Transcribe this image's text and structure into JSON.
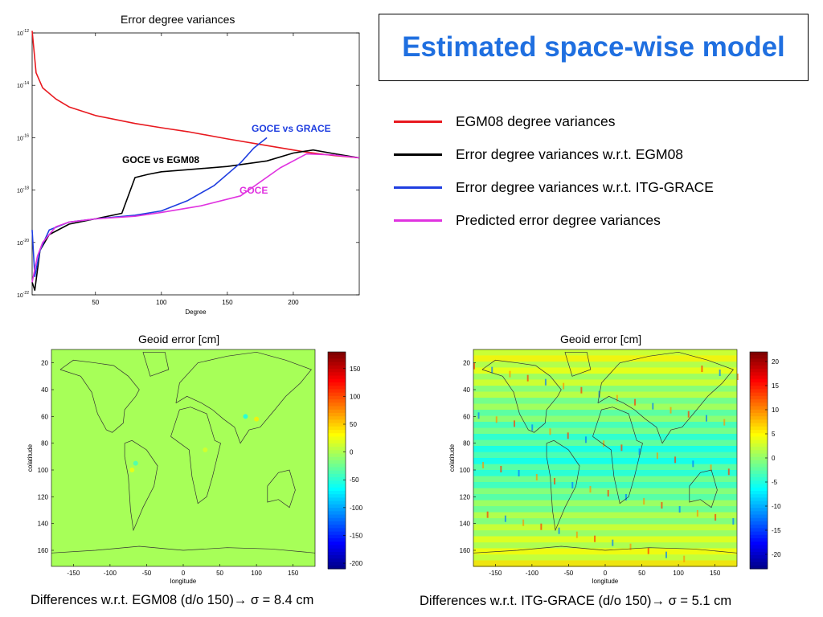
{
  "title": "Estimated space-wise model",
  "legend": [
    {
      "label": "EGM08 degree variances",
      "color": "#e8191f"
    },
    {
      "label": "Error degree variances w.r.t. EGM08",
      "color": "#000000"
    },
    {
      "label": "Error degree variances w.r.t. ITG-GRACE",
      "color": "#1f3ee0"
    },
    {
      "label": "Predicted error degree variances",
      "color": "#e033e0"
    }
  ],
  "chart_data": [
    {
      "type": "line",
      "title": "Error degree variances",
      "xlabel": "Degree",
      "ylabel": "",
      "xlim": [
        2,
        250
      ],
      "ylim": [
        1e-22,
        1e-12
      ],
      "log_y": true,
      "x_ticks": [
        50,
        100,
        150,
        200
      ],
      "y_ticks": [
        "10^-12",
        "10^-14",
        "10^-16",
        "10^-18",
        "10^-20",
        "10^-22"
      ],
      "annotations": [
        "GOCE vs GRACE",
        "GOCE vs EGM08",
        "GOCE"
      ],
      "series": [
        {
          "name": "EGM08 degree variances",
          "color": "#e8191f",
          "x": [
            2,
            5,
            10,
            20,
            30,
            50,
            80,
            100,
            120,
            150,
            180,
            210,
            230,
            250
          ],
          "y": [
            1.2e-12,
            3e-14,
            8e-15,
            3e-15,
            1.5e-15,
            7e-16,
            3.5e-16,
            2.4e-16,
            1.7e-16,
            9e-17,
            5e-17,
            2.8e-17,
            2.1e-17,
            1.7e-17
          ]
        },
        {
          "name": "Error degree variances w.r.t. EGM08",
          "color": "#000000",
          "x": [
            2,
            4,
            8,
            15,
            30,
            50,
            70,
            80,
            90,
            100,
            120,
            150,
            180,
            200,
            215,
            230,
            250
          ],
          "y": [
            3e-22,
            1.5e-22,
            5e-21,
            2e-20,
            5e-20,
            8e-20,
            1.3e-19,
            3e-18,
            4e-18,
            5e-18,
            6e-18,
            8e-18,
            1.3e-17,
            2.6e-17,
            3.4e-17,
            2.5e-17,
            1.7e-17
          ]
        },
        {
          "name": "Error degree variances w.r.t. ITG-GRACE",
          "color": "#1f3ee0",
          "x": [
            2,
            4,
            8,
            15,
            30,
            50,
            80,
            100,
            120,
            140,
            160,
            170,
            180
          ],
          "y": [
            3e-20,
            5e-22,
            5e-21,
            3e-20,
            6e-20,
            8e-20,
            1.1e-19,
            1.6e-19,
            4e-19,
            1.5e-18,
            1.1e-17,
            4e-17,
            1e-16
          ]
        },
        {
          "name": "Predicted error degree variances",
          "color": "#e033e0",
          "x": [
            2,
            6,
            10,
            20,
            30,
            50,
            80,
            100,
            130,
            160,
            190,
            210,
            230,
            250
          ],
          "y": [
            3e-22,
            3e-21,
            1e-20,
            4e-20,
            6e-20,
            8e-20,
            1e-19,
            1.4e-19,
            2.5e-19,
            6e-19,
            7e-18,
            2.4e-17,
            2.2e-17,
            1.7e-17
          ]
        }
      ]
    },
    {
      "type": "heatmap",
      "title": "Geoid error [cm]",
      "xlabel": "longitude",
      "ylabel": "colatitude",
      "x_ticks": [
        -150,
        -100,
        -50,
        0,
        50,
        100,
        150
      ],
      "y_ticks": [
        20,
        40,
        60,
        80,
        100,
        120,
        140,
        160
      ],
      "colorbar_ticks": [
        150,
        100,
        50,
        0,
        -50,
        -100,
        -150,
        -200
      ],
      "colorbar_range": [
        -210,
        180
      ],
      "dominant_value": 0
    },
    {
      "type": "heatmap",
      "title": "Geoid error [cm]",
      "xlabel": "longitude",
      "ylabel": "colatitude",
      "x_ticks": [
        -150,
        -100,
        -50,
        0,
        50,
        100,
        150
      ],
      "y_ticks": [
        20,
        40,
        60,
        80,
        100,
        120,
        140,
        160
      ],
      "colorbar_ticks": [
        20,
        15,
        10,
        5,
        0,
        -5,
        -10,
        -15,
        -20
      ],
      "colorbar_range": [
        -23,
        22
      ],
      "dominant_value": 0
    }
  ],
  "captions": {
    "left": "Differences w.r.t. EGM08 (d/o 150)→ σ = 8.4 cm",
    "right": "Differences w.r.t. ITG-GRACE (d/o 150)→ σ = 5.1 cm"
  }
}
